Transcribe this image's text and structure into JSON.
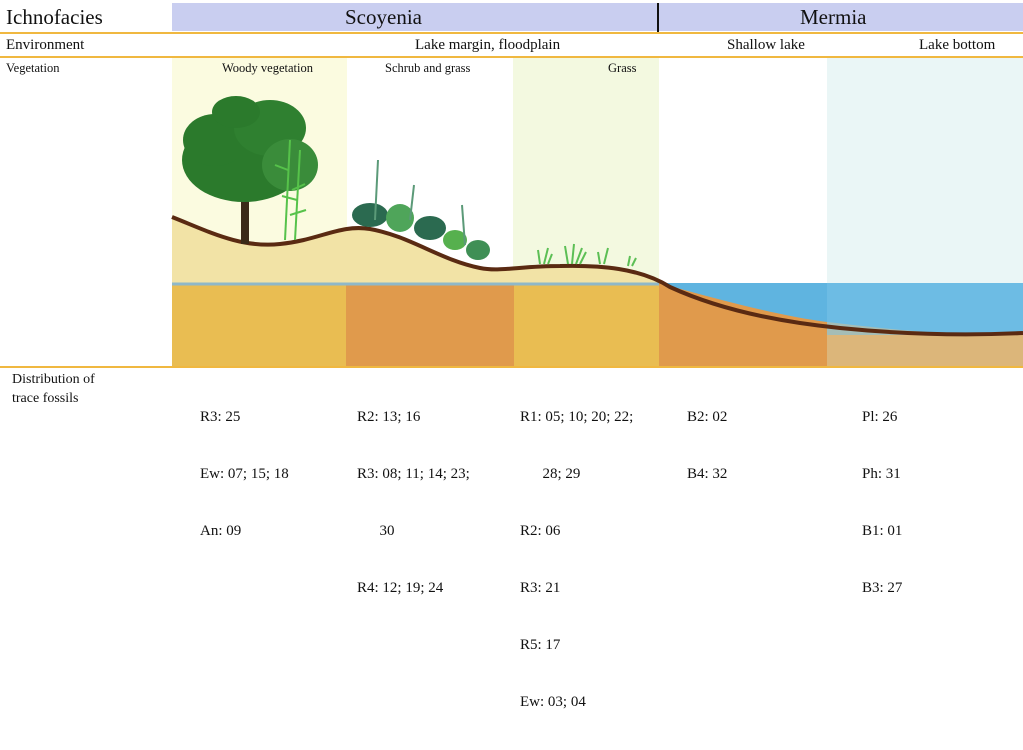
{
  "header": {
    "ichnofacies_label": "Ichnofacies",
    "scoyenia": "Scoyenia",
    "mermia": "Mermia"
  },
  "environment": {
    "label": "Environment",
    "lake_margin": "Lake margin, floodplain",
    "shallow_lake": "Shallow lake",
    "lake_bottom": "Lake bottom"
  },
  "vegetation": {
    "label": "Vegetation",
    "woody": "Woody vegetation",
    "schrub": "Schrub and grass",
    "grass": "Grass"
  },
  "distribution": {
    "label_line1": "Distribution of",
    "label_line2": "trace fossils",
    "woody": [
      "R3: 25",
      "Ew: 07; 15; 18",
      "An: 09"
    ],
    "schrub": [
      "R2: 13; 16",
      "R3: 08; 11; 14; 23;",
      "      30",
      "R4: 12; 19; 24"
    ],
    "grass": [
      "R1: 05; 10; 20; 22;",
      "      28; 29",
      "R2: 06",
      "R3: 21",
      "R5: 17",
      "Ew: 03; 04"
    ],
    "shallow": [
      "B2: 02",
      "B4: 32"
    ],
    "bottom": [
      "Pl: 26",
      "Ph: 31",
      "B1: 01",
      "B3: 27"
    ]
  },
  "colors": {
    "header_band": "#c9cef0",
    "orange_rule": "#f0b840",
    "woody_bg": "#fbfbe0",
    "grass_bg": "#f3f9e0",
    "lake_bottom_bg": "#eaf6f6",
    "soil_light": "#f2e3a6",
    "layer_yellow": "#e9bd52",
    "layer_orange": "#e09a4c",
    "water": "#5fb4e0",
    "ground_line": "#5a2a12",
    "tree": "#2b7a2c"
  }
}
